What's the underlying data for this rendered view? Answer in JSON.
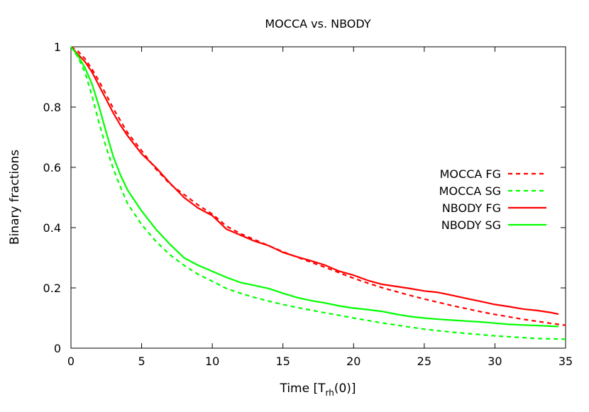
{
  "chart_data": {
    "type": "line",
    "title": "MOCCA vs. NBODY",
    "xlabel": {
      "main": "Time [T",
      "sub": "rh",
      "tail": "(0)]"
    },
    "ylabel": "Binary fractions",
    "xlim": [
      0,
      35
    ],
    "ylim": [
      0,
      1
    ],
    "xticks": [
      "0",
      "5",
      "10",
      "15",
      "20",
      "25",
      "30",
      "35"
    ],
    "yticks": [
      "0",
      "0.2",
      "0.4",
      "0.6",
      "0.8",
      "1"
    ],
    "grid": false,
    "legend_position": "right",
    "series": [
      {
        "name": "MOCCA FG",
        "color": "#ff0000",
        "dash": true,
        "x": [
          0,
          0.5,
          1,
          1.5,
          2,
          2.5,
          3,
          3.5,
          4,
          5,
          6,
          7,
          8,
          9,
          10,
          11,
          12,
          13,
          14,
          15,
          16,
          17,
          18,
          19,
          20,
          21,
          22,
          23,
          24,
          25,
          26,
          27,
          28,
          29,
          30,
          31,
          32,
          33,
          34,
          35
        ],
        "y": [
          1.0,
          0.985,
          0.96,
          0.925,
          0.885,
          0.84,
          0.795,
          0.755,
          0.715,
          0.655,
          0.595,
          0.545,
          0.51,
          0.475,
          0.445,
          0.405,
          0.38,
          0.36,
          0.34,
          0.32,
          0.302,
          0.285,
          0.268,
          0.25,
          0.232,
          0.216,
          0.201,
          0.188,
          0.175,
          0.163,
          0.152,
          0.141,
          0.131,
          0.121,
          0.112,
          0.104,
          0.096,
          0.089,
          0.082,
          0.076
        ]
      },
      {
        "name": "MOCCA SG",
        "color": "#00ff00",
        "dash": true,
        "x": [
          0,
          0.5,
          1,
          1.5,
          2,
          2.5,
          3,
          3.5,
          4,
          5,
          6,
          7,
          8,
          9,
          10,
          11,
          12,
          13,
          14,
          15,
          16,
          17,
          18,
          19,
          20,
          21,
          22,
          23,
          24,
          25,
          26,
          27,
          28,
          29,
          30,
          31,
          32,
          33,
          34,
          35
        ],
        "y": [
          1.0,
          0.965,
          0.915,
          0.835,
          0.745,
          0.665,
          0.595,
          0.535,
          0.48,
          0.41,
          0.355,
          0.31,
          0.275,
          0.245,
          0.222,
          0.198,
          0.182,
          0.168,
          0.156,
          0.145,
          0.135,
          0.126,
          0.117,
          0.109,
          0.1,
          0.092,
          0.084,
          0.077,
          0.07,
          0.063,
          0.058,
          0.053,
          0.049,
          0.045,
          0.041,
          0.038,
          0.035,
          0.032,
          0.031,
          0.03
        ]
      },
      {
        "name": "NBODY FG",
        "color": "#ff0000",
        "dash": false,
        "x": [
          0,
          0.5,
          1,
          1.5,
          2,
          2.5,
          3,
          3.5,
          4,
          5,
          6,
          7,
          8,
          9,
          10,
          11,
          12,
          13,
          14,
          15,
          16,
          17,
          18,
          19,
          20,
          21,
          22,
          23,
          24,
          25,
          26,
          27,
          28,
          29,
          30,
          31,
          32,
          33,
          34,
          34.5
        ],
        "y": [
          1.0,
          0.975,
          0.95,
          0.915,
          0.87,
          0.825,
          0.78,
          0.74,
          0.705,
          0.645,
          0.6,
          0.548,
          0.5,
          0.465,
          0.44,
          0.395,
          0.375,
          0.355,
          0.34,
          0.318,
          0.303,
          0.29,
          0.275,
          0.255,
          0.242,
          0.225,
          0.212,
          0.205,
          0.198,
          0.19,
          0.185,
          0.175,
          0.165,
          0.155,
          0.145,
          0.138,
          0.13,
          0.125,
          0.118,
          0.113
        ]
      },
      {
        "name": "NBODY SG",
        "color": "#00ff00",
        "dash": false,
        "x": [
          0,
          0.5,
          1,
          1.5,
          2,
          2.5,
          3,
          3.5,
          4,
          5,
          6,
          7,
          8,
          9,
          10,
          11,
          12,
          13,
          14,
          15,
          16,
          17,
          18,
          19,
          20,
          21,
          22,
          23,
          24,
          25,
          26,
          27,
          28,
          29,
          30,
          31,
          32,
          33,
          34,
          34.5
        ],
        "y": [
          1.0,
          0.97,
          0.93,
          0.875,
          0.8,
          0.715,
          0.635,
          0.575,
          0.525,
          0.455,
          0.395,
          0.345,
          0.3,
          0.275,
          0.255,
          0.235,
          0.218,
          0.208,
          0.198,
          0.182,
          0.168,
          0.158,
          0.15,
          0.14,
          0.133,
          0.128,
          0.122,
          0.113,
          0.105,
          0.1,
          0.096,
          0.093,
          0.09,
          0.087,
          0.083,
          0.079,
          0.077,
          0.075,
          0.073,
          0.072
        ]
      }
    ]
  }
}
